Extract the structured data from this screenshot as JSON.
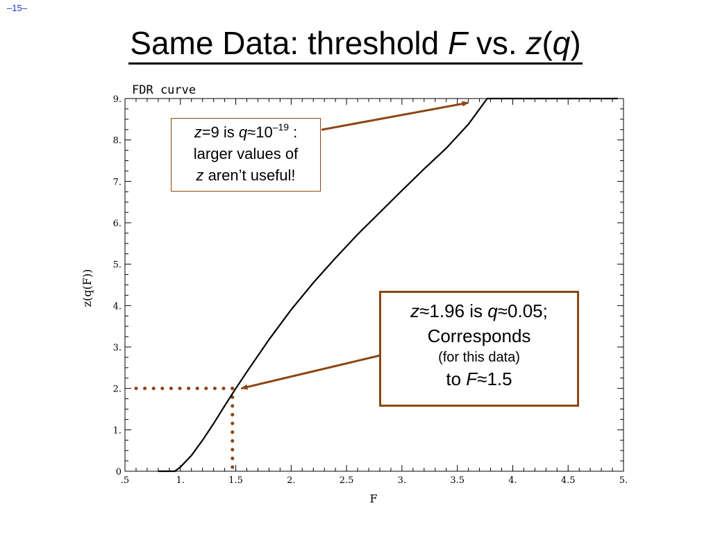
{
  "slide_number": "–15–",
  "title": {
    "prefix": "Same Data: threshold ",
    "F": "F",
    "vs": " vs. ",
    "z": "z",
    "paren_open": "(",
    "q": "q",
    "paren_close": ")"
  },
  "callout_top": {
    "z": "z",
    "eq": "=9 is ",
    "q": "q",
    "approx": "≈10",
    "exp": "–19",
    "colon": " :",
    "line2": "larger values of",
    "z2": "z",
    "line3_rest": " aren’t useful!"
  },
  "callout_bottom": {
    "z": "z",
    "line1_mid": "≈1.96 is ",
    "q": "q",
    "line1_end": "≈0.05;",
    "line2": "Corresponds",
    "line3": "(for this data)",
    "line4_pre": "to ",
    "F": "F",
    "line4_end": "≈1.5"
  },
  "colors": {
    "annotation": "#8b4513",
    "curve": "#000000",
    "slide_number": "#1f35c8"
  },
  "chart_data": {
    "type": "line",
    "title": "FDR curve",
    "xlabel": "F",
    "ylabel": "z(q(F))",
    "xlim": [
      0.5,
      5.0
    ],
    "ylim": [
      0,
      9
    ],
    "x_ticks": [
      ".5",
      "1.",
      "1.5",
      "2.",
      "2.5",
      "3.",
      "3.5",
      "4.",
      "4.5",
      "5."
    ],
    "y_ticks": [
      "0",
      "1.",
      "2.",
      "3.",
      "4.",
      "5.",
      "6.",
      "7.",
      "8.",
      "9."
    ],
    "series": [
      {
        "x": [
          0.8,
          0.95,
          1.0,
          1.1,
          1.2,
          1.3,
          1.4,
          1.5,
          1.6,
          1.8,
          2.0,
          2.2,
          2.4,
          2.6,
          2.8,
          3.0,
          3.2,
          3.4,
          3.6,
          3.77,
          4.0,
          4.5,
          4.95
        ],
        "y": [
          0.0,
          0.0,
          0.1,
          0.38,
          0.75,
          1.15,
          1.58,
          2.0,
          2.4,
          3.18,
          3.9,
          4.55,
          5.15,
          5.72,
          6.25,
          6.78,
          7.3,
          7.8,
          8.38,
          9.0,
          9.0,
          9.0,
          9.0
        ]
      }
    ],
    "annotations": [
      {
        "type": "arrow",
        "to": [
          3.6,
          8.9
        ]
      },
      {
        "type": "arrow",
        "to": [
          1.55,
          2.0
        ]
      },
      {
        "type": "dotted-line",
        "from": [
          0.6,
          2.0
        ],
        "to": [
          1.47,
          2.0
        ]
      },
      {
        "type": "dotted-line",
        "from": [
          1.47,
          2.0
        ],
        "to": [
          1.47,
          0.0
        ]
      }
    ]
  }
}
